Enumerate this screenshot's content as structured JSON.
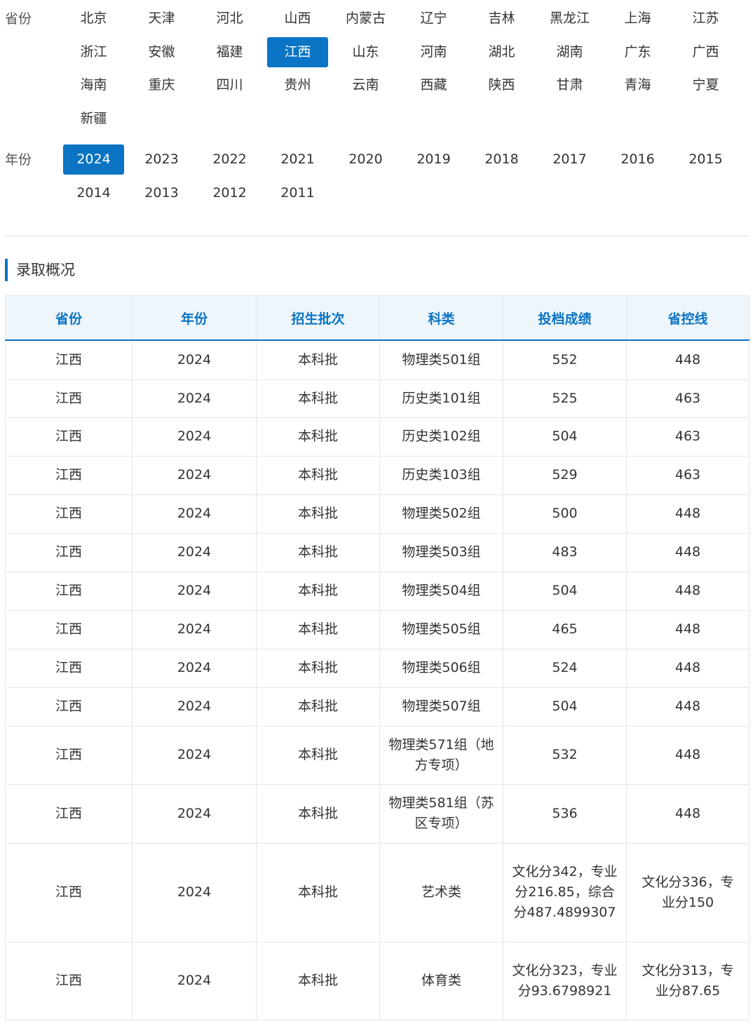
{
  "filters": {
    "province_label": "省份",
    "provinces": [
      "北京",
      "天津",
      "河北",
      "山西",
      "内蒙古",
      "辽宁",
      "吉林",
      "黑龙江",
      "上海",
      "江苏",
      "浙江",
      "安徽",
      "福建",
      "江西",
      "山东",
      "河南",
      "湖北",
      "湖南",
      "广东",
      "广西",
      "海南",
      "重庆",
      "四川",
      "贵州",
      "云南",
      "西藏",
      "陕西",
      "甘肃",
      "青海",
      "宁夏",
      "新疆"
    ],
    "selected_province": "江西",
    "year_label": "年份",
    "years": [
      "2024",
      "2023",
      "2022",
      "2021",
      "2020",
      "2019",
      "2018",
      "2017",
      "2016",
      "2015",
      "2014",
      "2013",
      "2012",
      "2011"
    ],
    "selected_year": "2024"
  },
  "section": {
    "title": "录取概况"
  },
  "table": {
    "headers": [
      "省份",
      "年份",
      "招生批次",
      "科类",
      "投档成绩",
      "省控线"
    ],
    "rows": [
      [
        "江西",
        "2024",
        "本科批",
        "物理类501组",
        "552",
        "448"
      ],
      [
        "江西",
        "2024",
        "本科批",
        "历史类101组",
        "525",
        "463"
      ],
      [
        "江西",
        "2024",
        "本科批",
        "历史类102组",
        "504",
        "463"
      ],
      [
        "江西",
        "2024",
        "本科批",
        "历史类103组",
        "529",
        "463"
      ],
      [
        "江西",
        "2024",
        "本科批",
        "物理类502组",
        "500",
        "448"
      ],
      [
        "江西",
        "2024",
        "本科批",
        "物理类503组",
        "483",
        "448"
      ],
      [
        "江西",
        "2024",
        "本科批",
        "物理类504组",
        "504",
        "448"
      ],
      [
        "江西",
        "2024",
        "本科批",
        "物理类505组",
        "465",
        "448"
      ],
      [
        "江西",
        "2024",
        "本科批",
        "物理类506组",
        "524",
        "448"
      ],
      [
        "江西",
        "2024",
        "本科批",
        "物理类507组",
        "504",
        "448"
      ],
      [
        "江西",
        "2024",
        "本科批",
        "物理类571组（地方专项）",
        "532",
        "448"
      ],
      [
        "江西",
        "2024",
        "本科批",
        "物理类581组（苏区专项）",
        "536",
        "448"
      ],
      [
        "江西",
        "2024",
        "本科批",
        "艺术类",
        "文化分342，专业分216.85，综合分487.4899307",
        "文化分336，专业分150"
      ],
      [
        "江西",
        "2024",
        "本科批",
        "体育类",
        "文化分323，专业分93.6798921",
        "文化分313，专业分87.65"
      ]
    ]
  },
  "colors": {
    "accent": "#0b74c4",
    "header_bg": "#eef5fb"
  }
}
